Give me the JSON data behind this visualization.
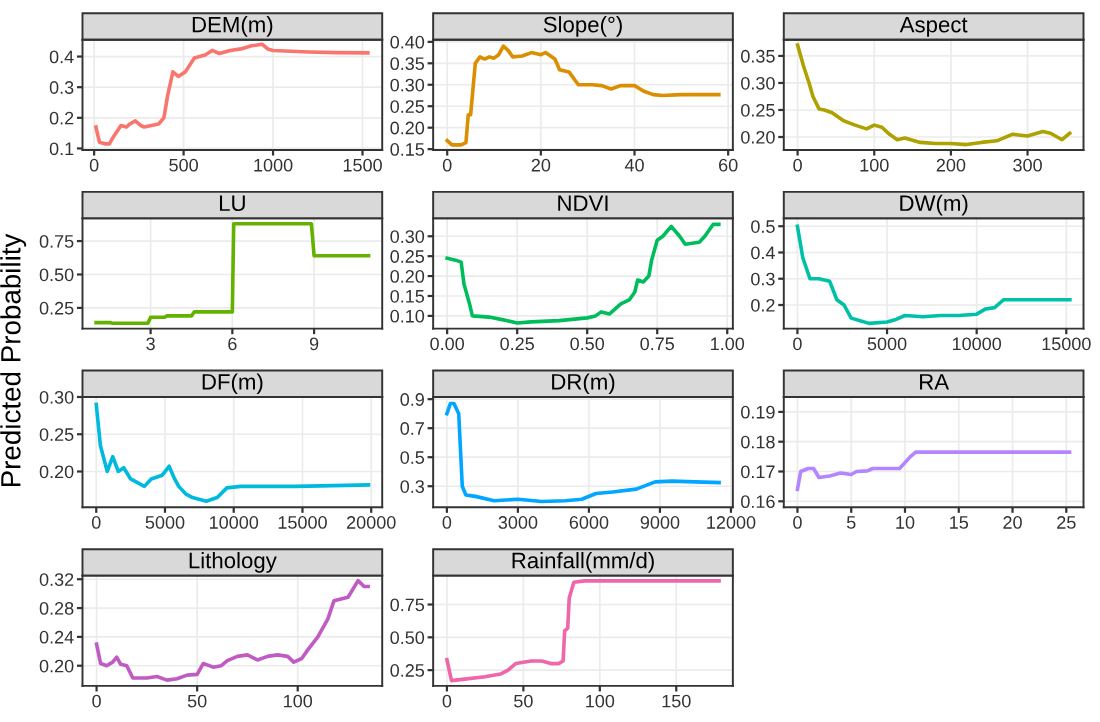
{
  "chart_data": [
    {
      "type": "line",
      "title": "DEM(m)",
      "color": "#f8766d",
      "grid": true,
      "x": [
        10,
        30,
        60,
        85,
        110,
        150,
        180,
        200,
        230,
        260,
        280,
        320,
        360,
        390,
        410,
        440,
        470,
        510,
        560,
        620,
        660,
        700,
        760,
        820,
        880,
        940,
        970,
        1000,
        1200,
        1350,
        1530
      ],
      "values": [
        0.17,
        0.12,
        0.115,
        0.115,
        0.14,
        0.175,
        0.17,
        0.18,
        0.19,
        0.175,
        0.17,
        0.175,
        0.18,
        0.2,
        0.27,
        0.35,
        0.335,
        0.35,
        0.395,
        0.405,
        0.42,
        0.41,
        0.42,
        0.425,
        0.435,
        0.44,
        0.425,
        0.42,
        0.415,
        0.413,
        0.412
      ],
      "xlim": [
        -65,
        1610
      ],
      "ylim": [
        0.095,
        0.455
      ],
      "xticks": [
        0,
        500,
        1000,
        1500
      ],
      "yticks": [
        0.1,
        0.2,
        0.3,
        0.4
      ]
    },
    {
      "type": "line",
      "title": "Slope(°)",
      "color": "#db8e00",
      "grid": true,
      "x": [
        0,
        1,
        3,
        4,
        4.5,
        5,
        6,
        7,
        8,
        9,
        10,
        11,
        12,
        13,
        14,
        16,
        18,
        20,
        21,
        23,
        24,
        26,
        28,
        31,
        33,
        35,
        37,
        40,
        42,
        44,
        46,
        50,
        58
      ],
      "values": [
        0.17,
        0.16,
        0.16,
        0.165,
        0.23,
        0.23,
        0.35,
        0.365,
        0.36,
        0.365,
        0.362,
        0.37,
        0.39,
        0.38,
        0.365,
        0.367,
        0.375,
        0.37,
        0.375,
        0.36,
        0.335,
        0.33,
        0.3,
        0.3,
        0.298,
        0.29,
        0.298,
        0.298,
        0.285,
        0.277,
        0.275,
        0.277,
        0.277
      ],
      "xlim": [
        -3,
        61
      ],
      "ylim": [
        0.148,
        0.405
      ],
      "xticks": [
        0,
        20,
        40,
        60
      ],
      "yticks": [
        {
          "value": 0.15,
          "label": "0.15"
        },
        {
          "value": 0.2,
          "label": "0.20"
        },
        {
          "value": 0.25,
          "label": "0.25"
        },
        {
          "value": 0.3,
          "label": "0.30"
        },
        {
          "value": 0.35,
          "label": "0.35"
        },
        {
          "value": 0.4,
          "label": "0.40"
        }
      ]
    },
    {
      "type": "line",
      "title": "Aspect",
      "color": "#aea200",
      "grid": true,
      "x": [
        0,
        8,
        15,
        20,
        28,
        35,
        45,
        60,
        75,
        90,
        100,
        110,
        120,
        130,
        140,
        160,
        180,
        200,
        220,
        240,
        260,
        280,
        300,
        320,
        330,
        345,
        355
      ],
      "values": [
        0.37,
        0.33,
        0.3,
        0.275,
        0.252,
        0.25,
        0.245,
        0.23,
        0.222,
        0.215,
        0.222,
        0.218,
        0.205,
        0.195,
        0.198,
        0.19,
        0.188,
        0.188,
        0.186,
        0.19,
        0.193,
        0.205,
        0.202,
        0.21,
        0.207,
        0.195,
        0.207
      ],
      "xlim": [
        -18,
        373
      ],
      "ylim": [
        0.176,
        0.38
      ],
      "xticks": [
        0,
        100,
        200,
        300
      ],
      "yticks": [
        {
          "value": 0.2,
          "label": "0.20"
        },
        {
          "value": 0.25,
          "label": "0.25"
        },
        {
          "value": 0.3,
          "label": "0.30"
        },
        {
          "value": 0.35,
          "label": "0.35"
        }
      ]
    },
    {
      "type": "line",
      "title": "LU",
      "color": "#64b200",
      "grid": true,
      "ylabel": "Predicted Probability",
      "x": [
        1,
        1.5,
        1.6,
        2.9,
        3,
        3.5,
        3.6,
        4.5,
        4.6,
        6,
        6.05,
        8.9,
        9,
        11
      ],
      "values": [
        0.14,
        0.14,
        0.135,
        0.135,
        0.18,
        0.18,
        0.19,
        0.19,
        0.22,
        0.22,
        0.88,
        0.88,
        0.64,
        0.64
      ],
      "xlim": [
        0.5,
        11.5
      ],
      "ylim": [
        0.095,
        0.92
      ],
      "xticks": [
        3,
        6,
        9
      ],
      "yticks": [
        {
          "value": 0.25,
          "label": "0.25"
        },
        {
          "value": 0.5,
          "label": "0.50"
        },
        {
          "value": 0.75,
          "label": "0.75"
        }
      ]
    },
    {
      "type": "line",
      "title": "NDVI",
      "color": "#00bd5c",
      "grid": true,
      "x": [
        0,
        0.03,
        0.05,
        0.06,
        0.08,
        0.09,
        0.15,
        0.2,
        0.25,
        0.3,
        0.4,
        0.5,
        0.53,
        0.55,
        0.58,
        0.62,
        0.65,
        0.67,
        0.68,
        0.7,
        0.72,
        0.73,
        0.75,
        0.77,
        0.8,
        0.83,
        0.85,
        0.9,
        0.92,
        0.95,
        0.97
      ],
      "values": [
        0.245,
        0.24,
        0.235,
        0.18,
        0.13,
        0.1,
        0.097,
        0.09,
        0.082,
        0.085,
        0.088,
        0.095,
        0.1,
        0.11,
        0.105,
        0.13,
        0.14,
        0.16,
        0.19,
        0.185,
        0.2,
        0.24,
        0.29,
        0.3,
        0.325,
        0.3,
        0.28,
        0.285,
        0.3,
        0.33,
        0.33
      ],
      "xlim": [
        -0.05,
        1.02
      ],
      "ylim": [
        0.068,
        0.345
      ],
      "xticks": [
        {
          "value": 0,
          "label": "0.00"
        },
        {
          "value": 0.25,
          "label": "0.25"
        },
        {
          "value": 0.5,
          "label": "0.50"
        },
        {
          "value": 0.75,
          "label": "0.75"
        },
        {
          "value": 1,
          "label": "1.00"
        }
      ],
      "yticks": [
        {
          "value": 0.1,
          "label": "0.10"
        },
        {
          "value": 0.15,
          "label": "0.15"
        },
        {
          "value": 0.2,
          "label": "0.20"
        },
        {
          "value": 0.25,
          "label": "0.25"
        },
        {
          "value": 0.3,
          "label": "0.30"
        }
      ]
    },
    {
      "type": "line",
      "title": "DW(m)",
      "color": "#00c1a7",
      "grid": true,
      "x": [
        0,
        300,
        700,
        1200,
        1800,
        2200,
        2600,
        3000,
        3500,
        4000,
        5000,
        5500,
        6000,
        7000,
        8000,
        9000,
        10000,
        10500,
        11000,
        11500,
        15200
      ],
      "values": [
        0.5,
        0.38,
        0.3,
        0.3,
        0.29,
        0.22,
        0.2,
        0.15,
        0.14,
        0.13,
        0.135,
        0.145,
        0.16,
        0.155,
        0.16,
        0.16,
        0.165,
        0.185,
        0.19,
        0.22,
        0.22
      ],
      "xlim": [
        -760,
        15960
      ],
      "ylim": [
        0.11,
        0.53
      ],
      "xticks": [
        0,
        5000,
        10000,
        15000
      ],
      "yticks": [
        0.2,
        0.3,
        0.4,
        0.5
      ]
    },
    {
      "type": "line",
      "title": "DF(m)",
      "color": "#00bade",
      "grid": true,
      "x": [
        0,
        300,
        800,
        1200,
        1600,
        2000,
        2500,
        3000,
        3500,
        4000,
        4800,
        5300,
        5700,
        6000,
        6500,
        7000,
        8000,
        8800,
        9500,
        10500,
        14500,
        19800
      ],
      "values": [
        0.29,
        0.235,
        0.2,
        0.22,
        0.2,
        0.205,
        0.19,
        0.185,
        0.18,
        0.19,
        0.195,
        0.207,
        0.19,
        0.18,
        0.17,
        0.165,
        0.16,
        0.165,
        0.178,
        0.18,
        0.18,
        0.182
      ],
      "xlim": [
        -1000,
        20800
      ],
      "ylim": [
        0.152,
        0.3
      ],
      "xticks": [
        0,
        5000,
        10000,
        15000,
        20000
      ],
      "yticks": [
        {
          "value": 0.2,
          "label": "0.20"
        },
        {
          "value": 0.25,
          "label": "0.25"
        },
        {
          "value": 0.3,
          "label": "0.30"
        }
      ]
    },
    {
      "type": "line",
      "title": "DR(m)",
      "color": "#00a6ff",
      "grid": true,
      "x": [
        0,
        150,
        300,
        500,
        650,
        800,
        1200,
        2000,
        3000,
        4000,
        5000,
        5700,
        6300,
        7000,
        8000,
        8800,
        9500,
        10500,
        11500
      ],
      "values": [
        0.8,
        0.87,
        0.87,
        0.8,
        0.3,
        0.24,
        0.23,
        0.2,
        0.21,
        0.195,
        0.2,
        0.21,
        0.25,
        0.26,
        0.28,
        0.33,
        0.335,
        0.33,
        0.325
      ],
      "xlim": [
        -580,
        12080
      ],
      "ylim": [
        0.155,
        0.915
      ],
      "xticks": [
        0,
        3000,
        6000,
        9000,
        12000
      ],
      "yticks": [
        0.3,
        0.5,
        0.7,
        0.9
      ]
    },
    {
      "type": "line",
      "title": "RA",
      "color": "#b385ff",
      "grid": true,
      "x": [
        0,
        0.3,
        1,
        1.5,
        2,
        3,
        4,
        5,
        5.5,
        6.5,
        7,
        9.5,
        10.5,
        11,
        25.3
      ],
      "values": [
        0.164,
        0.17,
        0.171,
        0.171,
        0.168,
        0.1685,
        0.1695,
        0.169,
        0.17,
        0.1702,
        0.171,
        0.171,
        0.175,
        0.1765,
        0.1765
      ],
      "xlim": [
        -1.27,
        26.6
      ],
      "ylim": [
        0.158,
        0.195
      ],
      "xticks": [
        0,
        5,
        10,
        15,
        20,
        25
      ],
      "yticks": [
        0.16,
        0.17,
        0.18,
        0.19
      ]
    },
    {
      "type": "line",
      "title": "Lithology",
      "color": "#c15bc4",
      "grid": true,
      "x": [
        0,
        2,
        5,
        8,
        10,
        12,
        15,
        18,
        25,
        30,
        35,
        40,
        45,
        50,
        53,
        58,
        62,
        65,
        70,
        75,
        80,
        85,
        90,
        95,
        98,
        102,
        105,
        110,
        115,
        118,
        125,
        130,
        133,
        135
      ],
      "values": [
        0.23,
        0.203,
        0.2,
        0.205,
        0.212,
        0.202,
        0.2,
        0.183,
        0.183,
        0.185,
        0.18,
        0.182,
        0.187,
        0.188,
        0.203,
        0.198,
        0.2,
        0.207,
        0.213,
        0.215,
        0.208,
        0.213,
        0.215,
        0.213,
        0.205,
        0.21,
        0.222,
        0.24,
        0.265,
        0.29,
        0.295,
        0.318,
        0.31,
        0.31
      ],
      "xlim": [
        -7,
        142
      ],
      "ylim": [
        0.172,
        0.325
      ],
      "xticks": [
        0,
        50,
        100
      ],
      "yticks": [
        {
          "value": 0.2,
          "label": "0.20"
        },
        {
          "value": 0.24,
          "label": "0.24"
        },
        {
          "value": 0.28,
          "label": "0.28"
        },
        {
          "value": 0.32,
          "label": "0.32"
        }
      ]
    },
    {
      "type": "line",
      "title": "Rainfall(mm/d)",
      "color": "#ef67a8",
      "grid": true,
      "x": [
        0,
        3,
        10,
        25,
        35,
        40,
        45,
        50,
        55,
        62,
        68,
        73,
        76,
        77,
        79,
        80,
        83,
        90,
        178
      ],
      "values": [
        0.33,
        0.17,
        0.18,
        0.2,
        0.22,
        0.25,
        0.3,
        0.31,
        0.32,
        0.32,
        0.3,
        0.3,
        0.32,
        0.55,
        0.57,
        0.8,
        0.92,
        0.93,
        0.93
      ],
      "xlim": [
        -9,
        187
      ],
      "ylim": [
        0.13,
        0.97
      ],
      "xticks": [
        0,
        50,
        100,
        150
      ],
      "yticks": [
        {
          "value": 0.25,
          "label": "0.25"
        },
        {
          "value": 0.5,
          "label": "0.50"
        },
        {
          "value": 0.75,
          "label": "0.75"
        }
      ]
    }
  ]
}
